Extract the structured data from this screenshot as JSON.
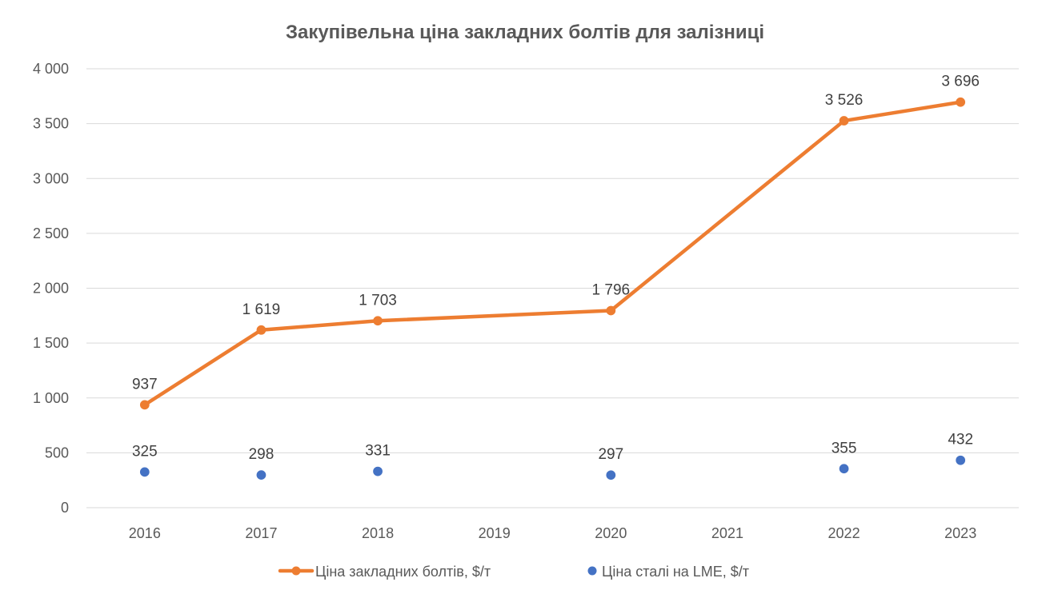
{
  "chart_data": {
    "type": "line",
    "title": "Закупівельна ціна закладних болтів для залізниці",
    "categories": [
      "2016",
      "2017",
      "2018",
      "2019",
      "2020",
      "2021",
      "2022",
      "2023"
    ],
    "ylim": [
      0,
      4000
    ],
    "yticks": [
      0,
      500,
      1000,
      1500,
      2000,
      2500,
      3000,
      3500,
      4000
    ],
    "ytick_labels": [
      "0",
      "500",
      "1 000",
      "1 500",
      "2 000",
      "2 500",
      "3 000",
      "3 500",
      "4 000"
    ],
    "grid": true,
    "legend_position": "bottom",
    "series": [
      {
        "name": "Ціна закладних болтів, $/т",
        "style": "line-markers",
        "color": "#ED7D31",
        "values": [
          937,
          1619,
          1703,
          null,
          1796,
          null,
          3526,
          3696
        ],
        "labels": [
          "937",
          "1 619",
          "1 703",
          "",
          "1 796",
          "",
          "3 526",
          "3 696"
        ]
      },
      {
        "name": "Ціна сталі на LME, $/т",
        "style": "markers",
        "color": "#4472C4",
        "values": [
          325,
          298,
          331,
          null,
          297,
          null,
          355,
          432
        ],
        "labels": [
          "325",
          "298",
          "331",
          "",
          "297",
          "",
          "355",
          "432"
        ]
      }
    ]
  }
}
